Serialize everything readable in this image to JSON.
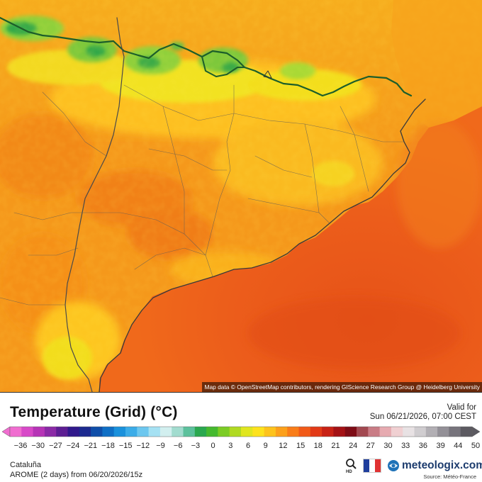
{
  "map": {
    "attribution": "Map data © OpenStreetMap contributors, rendering GIScience Research Group @ Heidelberg University",
    "colors": {
      "land_hot": "#f27c13",
      "land_warm": "#f7a51d",
      "land_mild": "#ffcd22",
      "land_cool": "#eeec1e",
      "land_cold": "#8fd33a",
      "land_peak": "#2ea346",
      "sea_near": "#ea5a1d",
      "sea_far": "#f16f1b",
      "border": "#3d3d3d"
    }
  },
  "header": {
    "title": "Temperature (Grid) (°C)",
    "valid_label": "Valid for",
    "valid_time": "Sun 06/21/2026, 07:00 CEST"
  },
  "legend": {
    "ticks": [
      "-36",
      "-30",
      "-27",
      "-24",
      "-21",
      "-18",
      "-15",
      "-12",
      "-9",
      "-6",
      "-3",
      "0",
      "3",
      "6",
      "9",
      "12",
      "15",
      "18",
      "21",
      "24",
      "27",
      "30",
      "33",
      "36",
      "39",
      "44",
      "50"
    ],
    "stops": [
      "#f06dd0",
      "#d849c8",
      "#b634b6",
      "#8b2aa6",
      "#5d1e93",
      "#31198c",
      "#1c2a8f",
      "#0f4ea9",
      "#0f6fc5",
      "#1a91dc",
      "#3bace8",
      "#6cc7ef",
      "#a5e1f3",
      "#d2efef",
      "#a2dccf",
      "#5cc19c",
      "#2aa84f",
      "#45b92f",
      "#7ccc25",
      "#b0da22",
      "#e0e61f",
      "#fde21d",
      "#fdc31c",
      "#fca01b",
      "#f97d19",
      "#f15a18",
      "#e23a17",
      "#c82216",
      "#a41216",
      "#7e0c16",
      "#a24850",
      "#c97c85",
      "#e6aab0",
      "#f0d0d2",
      "#e8e2e4",
      "#d0cdd0",
      "#b2afb4",
      "#939097",
      "#77747c",
      "#5c5a61"
    ]
  },
  "footer": {
    "region": "Cataluña",
    "model_run": "AROME (2 days) from 06/20/2026/15z",
    "hd_label": "HD",
    "logo_text": "meteologix.com",
    "source": "Source: Météo-France"
  }
}
